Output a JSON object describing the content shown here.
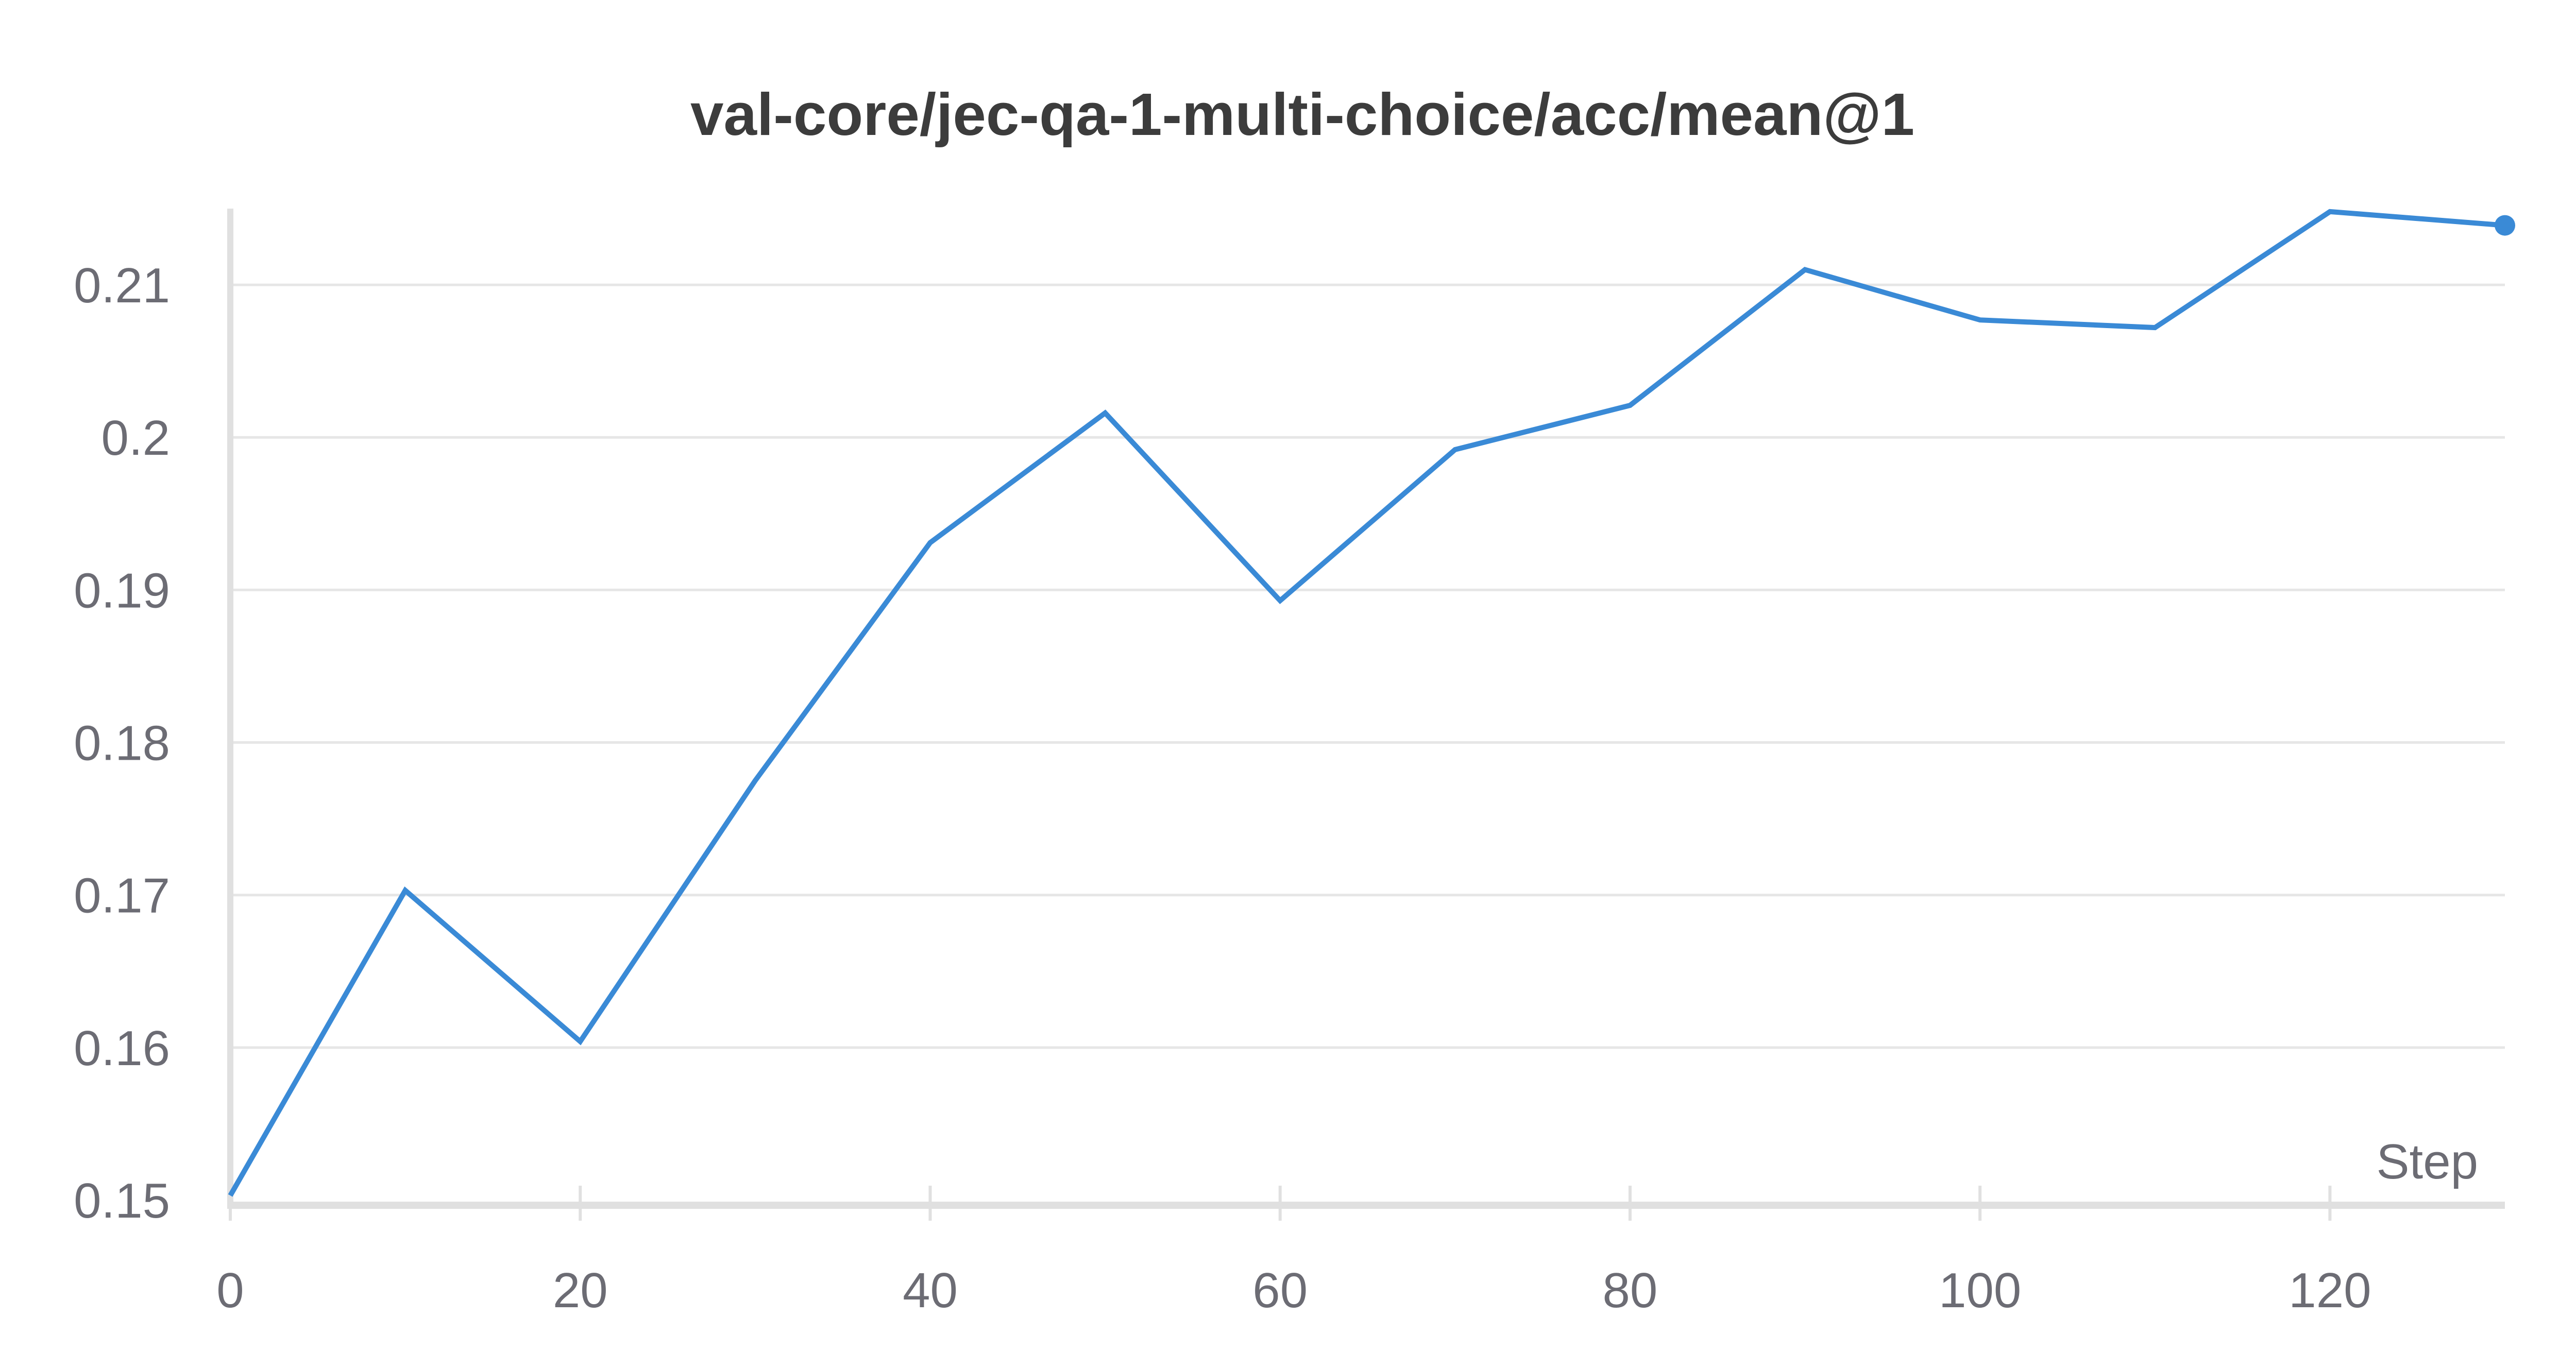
{
  "chart_data": {
    "type": "line",
    "title": "val-core/jec-qa-1-multi-choice/acc/mean@1",
    "xlabel": "Step",
    "ylabel": "",
    "xlim": [
      0,
      130
    ],
    "ylim": [
      0.15,
      0.215
    ],
    "x_ticks": [
      0,
      20,
      40,
      60,
      80,
      100,
      120
    ],
    "y_ticks": [
      0.15,
      0.16,
      0.17,
      0.18,
      0.19,
      0.2,
      0.21
    ],
    "x_tick_labels": [
      "0",
      "20",
      "40",
      "60",
      "80",
      "100",
      "120"
    ],
    "y_tick_labels": [
      "0.15",
      "0.16",
      "0.17",
      "0.18",
      "0.19",
      "0.2",
      "0.21"
    ],
    "grid": true,
    "legend": "none",
    "series": [
      {
        "color": "#3a8ad6",
        "x": [
          0,
          10,
          20,
          30,
          40,
          50,
          60,
          70,
          80,
          90,
          100,
          110,
          120,
          130
        ],
        "values": [
          0.1503,
          0.1703,
          0.1604,
          0.1775,
          0.1931,
          0.2016,
          0.1893,
          0.1992,
          0.2021,
          0.211,
          0.2077,
          0.2072,
          0.2148,
          0.2139
        ]
      }
    ]
  }
}
